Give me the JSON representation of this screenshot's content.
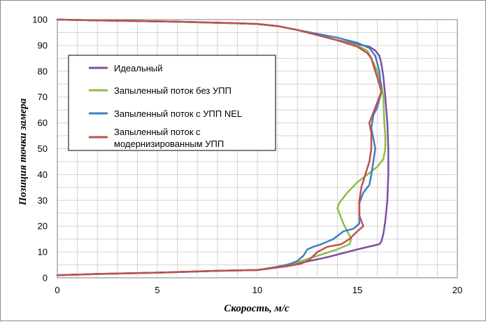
{
  "chart_data": {
    "type": "line",
    "title": "",
    "xlabel": "Скорость, м/с",
    "ylabel": "Позиция точки замера",
    "xlim": [
      0,
      20
    ],
    "ylim": [
      0,
      100
    ],
    "xticks": [
      "0",
      "5",
      "10",
      "15",
      "20"
    ],
    "yticks": [
      "0",
      "10",
      "20",
      "30",
      "40",
      "50",
      "60",
      "70",
      "80",
      "90",
      "100"
    ],
    "grid": true,
    "legend_position": "upper-left inside plot",
    "series": [
      {
        "name": "Идеальный",
        "color": "#7b4fa3",
        "points": [
          [
            0,
            100
          ],
          [
            2,
            99.7
          ],
          [
            6,
            99.2
          ],
          [
            9,
            98.6
          ],
          [
            10,
            98.3
          ],
          [
            11,
            97.5
          ],
          [
            12,
            96
          ],
          [
            13,
            94
          ],
          [
            14,
            92
          ],
          [
            15,
            90.5
          ],
          [
            15.6,
            89.5
          ],
          [
            15.9,
            88
          ],
          [
            16.1,
            86
          ],
          [
            16.2,
            83
          ],
          [
            16.3,
            78
          ],
          [
            16.4,
            70
          ],
          [
            16.5,
            60
          ],
          [
            16.55,
            50
          ],
          [
            16.55,
            40
          ],
          [
            16.5,
            30
          ],
          [
            16.4,
            22
          ],
          [
            16.3,
            17
          ],
          [
            16.2,
            14
          ],
          [
            16.1,
            13
          ],
          [
            15,
            11
          ],
          [
            13.5,
            8
          ],
          [
            12,
            5.5
          ],
          [
            10.5,
            3.5
          ],
          [
            10,
            3
          ],
          [
            8,
            2.7
          ],
          [
            5,
            2
          ],
          [
            2,
            1.5
          ],
          [
            0,
            1
          ]
        ]
      },
      {
        "name": "Запыленный поток без УПП",
        "color": "#8fbc46",
        "points": [
          [
            0,
            100
          ],
          [
            2,
            99.7
          ],
          [
            6,
            99.2
          ],
          [
            9,
            98.6
          ],
          [
            10,
            98.3
          ],
          [
            11,
            97.5
          ],
          [
            12,
            96
          ],
          [
            13,
            94
          ],
          [
            14,
            92
          ],
          [
            15,
            90
          ],
          [
            15.5,
            88
          ],
          [
            15.7,
            85
          ],
          [
            16,
            80
          ],
          [
            16.2,
            75
          ],
          [
            16.3,
            70
          ],
          [
            16.35,
            60
          ],
          [
            16.4,
            55
          ],
          [
            16.4,
            50
          ],
          [
            16.3,
            46
          ],
          [
            16,
            43
          ],
          [
            15.5,
            40
          ],
          [
            15,
            37
          ],
          [
            14.5,
            33
          ],
          [
            14.1,
            29
          ],
          [
            14,
            27
          ],
          [
            14.1,
            25
          ],
          [
            14.3,
            21
          ],
          [
            14.5,
            18
          ],
          [
            14.7,
            15
          ],
          [
            14.6,
            13
          ],
          [
            14,
            11
          ],
          [
            13,
            8.5
          ],
          [
            12,
            6
          ],
          [
            10.5,
            3.5
          ],
          [
            10,
            3
          ],
          [
            8,
            2.7
          ],
          [
            5,
            2
          ],
          [
            2,
            1.5
          ],
          [
            0,
            1
          ]
        ]
      },
      {
        "name": "Запыленный поток с УПП NEL",
        "color": "#3f7fc2",
        "points": [
          [
            0,
            100
          ],
          [
            2,
            99.7
          ],
          [
            6,
            99.2
          ],
          [
            9,
            98.6
          ],
          [
            10,
            98.3
          ],
          [
            11,
            97.5
          ],
          [
            12,
            96
          ],
          [
            13,
            94.5
          ],
          [
            14,
            93
          ],
          [
            15,
            91
          ],
          [
            15.6,
            89
          ],
          [
            15.9,
            86
          ],
          [
            16.1,
            80
          ],
          [
            16.2,
            72
          ],
          [
            16,
            66
          ],
          [
            15.8,
            63
          ],
          [
            15.7,
            58
          ],
          [
            15.8,
            54
          ],
          [
            15.9,
            50
          ],
          [
            15.8,
            45
          ],
          [
            15.7,
            40
          ],
          [
            15.6,
            36
          ],
          [
            15.3,
            33
          ],
          [
            15.1,
            29
          ],
          [
            15.1,
            24
          ],
          [
            15.1,
            21
          ],
          [
            14.8,
            19
          ],
          [
            14.3,
            18
          ],
          [
            13.8,
            15
          ],
          [
            13.2,
            13
          ],
          [
            12.8,
            12
          ],
          [
            12.5,
            11
          ],
          [
            12.3,
            8.5
          ],
          [
            12,
            6.5
          ],
          [
            11.5,
            5
          ],
          [
            10.8,
            4
          ],
          [
            10,
            3
          ],
          [
            8,
            2.7
          ],
          [
            5,
            2
          ],
          [
            2,
            1.5
          ],
          [
            0,
            1
          ]
        ]
      },
      {
        "name": "Запыленный поток с модернизированным УПП",
        "color": "#c0504d",
        "points": [
          [
            0,
            100
          ],
          [
            2,
            99.7
          ],
          [
            6,
            99.2
          ],
          [
            9,
            98.6
          ],
          [
            10,
            98.3
          ],
          [
            11,
            97.5
          ],
          [
            12,
            96
          ],
          [
            13,
            94
          ],
          [
            14,
            92
          ],
          [
            15,
            89.5
          ],
          [
            15.5,
            87
          ],
          [
            15.7,
            85
          ],
          [
            15.9,
            80
          ],
          [
            16.1,
            75
          ],
          [
            16.2,
            72
          ],
          [
            16,
            68
          ],
          [
            15.8,
            64
          ],
          [
            15.6,
            60
          ],
          [
            15.7,
            56
          ],
          [
            15.7,
            50
          ],
          [
            15.6,
            45
          ],
          [
            15.4,
            40
          ],
          [
            15.2,
            35
          ],
          [
            15.1,
            30
          ],
          [
            15.1,
            24
          ],
          [
            15.3,
            20
          ],
          [
            15,
            18
          ],
          [
            14.6,
            15
          ],
          [
            14.2,
            13
          ],
          [
            13.5,
            12
          ],
          [
            13,
            10
          ],
          [
            12.6,
            7
          ],
          [
            12.2,
            5.5
          ],
          [
            11.5,
            4.5
          ],
          [
            10.5,
            3.5
          ],
          [
            10,
            3
          ],
          [
            8,
            2.7
          ],
          [
            5,
            2
          ],
          [
            2,
            1.5
          ],
          [
            0,
            1
          ]
        ]
      }
    ]
  }
}
